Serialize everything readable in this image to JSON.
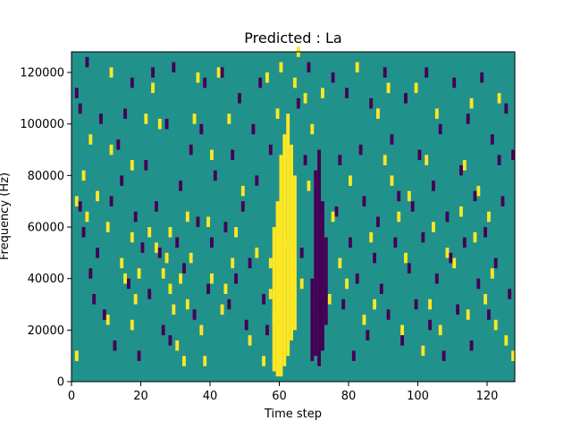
{
  "chart_data": {
    "type": "heatmap",
    "title": "Predicted : La",
    "xlabel": "Time step",
    "ylabel": "Frequency (Hz)",
    "xlim": [
      0,
      128
    ],
    "ylim": [
      0,
      128000
    ],
    "x_ticks": [
      0,
      20,
      40,
      60,
      80,
      100,
      120
    ],
    "y_ticks": [
      0,
      20000,
      40000,
      60000,
      80000,
      100000,
      120000
    ],
    "x_tick_labels": [
      "0",
      "20",
      "40",
      "60",
      "80",
      "100",
      "120"
    ],
    "y_tick_labels": [
      "0",
      "20000",
      "40000",
      "60000",
      "80000",
      "100000",
      "120000"
    ],
    "grid": false,
    "colormap": "viridis",
    "colors": {
      "background": "#21918c",
      "high": "#fde725",
      "low": "#440154"
    },
    "row_height_hz": 4000,
    "cell_width_steps": 1,
    "high_columns": [
      {
        "t": 58,
        "from": 4000,
        "to": 60000
      },
      {
        "t": 59,
        "from": 2000,
        "to": 70000
      },
      {
        "t": 60,
        "from": 2000,
        "to": 88000
      },
      {
        "t": 61,
        "from": 6000,
        "to": 96000
      },
      {
        "t": 62,
        "from": 10000,
        "to": 104000
      },
      {
        "t": 63,
        "from": 16000,
        "to": 92000
      },
      {
        "t": 64,
        "from": 20000,
        "to": 80000
      }
    ],
    "low_columns": [
      {
        "t": 69,
        "from": 8000,
        "to": 40000
      },
      {
        "t": 70,
        "from": 10000,
        "to": 82000
      },
      {
        "t": 71,
        "from": 6000,
        "to": 90000
      },
      {
        "t": 72,
        "from": 12000,
        "to": 70000
      },
      {
        "t": 73,
        "from": 22000,
        "to": 56000
      }
    ],
    "high_cells": [
      [
        1,
        8000
      ],
      [
        1,
        68000
      ],
      [
        3,
        78000
      ],
      [
        4,
        62000
      ],
      [
        5,
        92000
      ],
      [
        7,
        70000
      ],
      [
        10,
        22000
      ],
      [
        10,
        58000
      ],
      [
        11,
        88000
      ],
      [
        11,
        118000
      ],
      [
        14,
        44000
      ],
      [
        15,
        38000
      ],
      [
        17,
        20000
      ],
      [
        17,
        54000
      ],
      [
        17,
        82000
      ],
      [
        18,
        30000
      ],
      [
        19,
        40000
      ],
      [
        21,
        100000
      ],
      [
        22,
        56000
      ],
      [
        23,
        112000
      ],
      [
        24,
        50000
      ],
      [
        25,
        98000
      ],
      [
        26,
        40000
      ],
      [
        27,
        46000
      ],
      [
        28,
        34000
      ],
      [
        28,
        56000
      ],
      [
        29,
        26000
      ],
      [
        30,
        12000
      ],
      [
        31,
        38000
      ],
      [
        32,
        6000
      ],
      [
        33,
        28000
      ],
      [
        33,
        62000
      ],
      [
        34,
        46000
      ],
      [
        35,
        100000
      ],
      [
        36,
        116000
      ],
      [
        37,
        18000
      ],
      [
        38,
        6000
      ],
      [
        39,
        60000
      ],
      [
        40,
        38000
      ],
      [
        40,
        86000
      ],
      [
        42,
        118000
      ],
      [
        43,
        26000
      ],
      [
        44,
        34000
      ],
      [
        45,
        100000
      ],
      [
        46,
        44000
      ],
      [
        47,
        56000
      ],
      [
        49,
        72000
      ],
      [
        51,
        14000
      ],
      [
        53,
        48000
      ],
      [
        55,
        6000
      ],
      [
        56,
        116000
      ],
      [
        57,
        32000
      ],
      [
        57,
        44000
      ],
      [
        58,
        22000
      ],
      [
        59,
        102000
      ],
      [
        60,
        120000
      ],
      [
        62,
        52000
      ],
      [
        64,
        114000
      ],
      [
        65,
        126000
      ],
      [
        66,
        36000
      ],
      [
        67,
        108000
      ],
      [
        68,
        74000
      ],
      [
        69,
        96000
      ],
      [
        70,
        28000
      ],
      [
        72,
        110000
      ],
      [
        74,
        30000
      ],
      [
        75,
        62000
      ],
      [
        77,
        44000
      ],
      [
        79,
        36000
      ],
      [
        80,
        76000
      ],
      [
        82,
        120000
      ],
      [
        84,
        22000
      ],
      [
        86,
        54000
      ],
      [
        87,
        28000
      ],
      [
        88,
        102000
      ],
      [
        90,
        84000
      ],
      [
        91,
        112000
      ],
      [
        92,
        76000
      ],
      [
        94,
        62000
      ],
      [
        95,
        18000
      ],
      [
        96,
        46000
      ],
      [
        97,
        70000
      ],
      [
        99,
        112000
      ],
      [
        101,
        10000
      ],
      [
        102,
        84000
      ],
      [
        103,
        28000
      ],
      [
        104,
        58000
      ],
      [
        105,
        102000
      ],
      [
        106,
        18000
      ],
      [
        108,
        48000
      ],
      [
        110,
        44000
      ],
      [
        112,
        64000
      ],
      [
        113,
        82000
      ],
      [
        114,
        24000
      ],
      [
        115,
        106000
      ],
      [
        116,
        54000
      ],
      [
        117,
        72000
      ],
      [
        119,
        30000
      ],
      [
        120,
        62000
      ],
      [
        121,
        40000
      ],
      [
        122,
        20000
      ],
      [
        123,
        108000
      ],
      [
        125,
        14000
      ],
      [
        127,
        8000
      ]
    ],
    "low_cells": [
      [
        1,
        110000
      ],
      [
        2,
        66000
      ],
      [
        2,
        104000
      ],
      [
        3,
        56000
      ],
      [
        4,
        122000
      ],
      [
        5,
        40000
      ],
      [
        6,
        30000
      ],
      [
        7,
        48000
      ],
      [
        8,
        100000
      ],
      [
        9,
        24000
      ],
      [
        11,
        68000
      ],
      [
        12,
        12000
      ],
      [
        13,
        90000
      ],
      [
        14,
        76000
      ],
      [
        15,
        102000
      ],
      [
        16,
        36000
      ],
      [
        17,
        114000
      ],
      [
        18,
        62000
      ],
      [
        19,
        8000
      ],
      [
        20,
        50000
      ],
      [
        21,
        82000
      ],
      [
        22,
        32000
      ],
      [
        23,
        118000
      ],
      [
        24,
        66000
      ],
      [
        25,
        48000
      ],
      [
        26,
        18000
      ],
      [
        27,
        98000
      ],
      [
        28,
        14000
      ],
      [
        29,
        120000
      ],
      [
        30,
        52000
      ],
      [
        31,
        74000
      ],
      [
        32,
        42000
      ],
      [
        34,
        88000
      ],
      [
        35,
        24000
      ],
      [
        36,
        60000
      ],
      [
        37,
        96000
      ],
      [
        38,
        114000
      ],
      [
        39,
        34000
      ],
      [
        40,
        52000
      ],
      [
        41,
        78000
      ],
      [
        43,
        118000
      ],
      [
        44,
        58000
      ],
      [
        45,
        28000
      ],
      [
        46,
        86000
      ],
      [
        47,
        38000
      ],
      [
        48,
        108000
      ],
      [
        49,
        66000
      ],
      [
        50,
        20000
      ],
      [
        51,
        44000
      ],
      [
        52,
        96000
      ],
      [
        53,
        76000
      ],
      [
        54,
        114000
      ],
      [
        55,
        30000
      ],
      [
        56,
        18000
      ],
      [
        57,
        88000
      ],
      [
        65,
        106000
      ],
      [
        66,
        48000
      ],
      [
        67,
        84000
      ],
      [
        68,
        120000
      ],
      [
        75,
        116000
      ],
      [
        76,
        64000
      ],
      [
        77,
        84000
      ],
      [
        78,
        28000
      ],
      [
        79,
        110000
      ],
      [
        80,
        52000
      ],
      [
        81,
        8000
      ],
      [
        82,
        38000
      ],
      [
        83,
        88000
      ],
      [
        84,
        68000
      ],
      [
        85,
        16000
      ],
      [
        86,
        106000
      ],
      [
        87,
        46000
      ],
      [
        88,
        60000
      ],
      [
        89,
        34000
      ],
      [
        90,
        118000
      ],
      [
        91,
        24000
      ],
      [
        92,
        92000
      ],
      [
        93,
        52000
      ],
      [
        94,
        70000
      ],
      [
        95,
        14000
      ],
      [
        96,
        108000
      ],
      [
        97,
        42000
      ],
      [
        98,
        66000
      ],
      [
        99,
        28000
      ],
      [
        100,
        86000
      ],
      [
        101,
        54000
      ],
      [
        102,
        118000
      ],
      [
        103,
        20000
      ],
      [
        104,
        74000
      ],
      [
        105,
        38000
      ],
      [
        106,
        96000
      ],
      [
        107,
        8000
      ],
      [
        108,
        62000
      ],
      [
        109,
        46000
      ],
      [
        110,
        114000
      ],
      [
        111,
        26000
      ],
      [
        112,
        80000
      ],
      [
        113,
        52000
      ],
      [
        114,
        100000
      ],
      [
        115,
        12000
      ],
      [
        116,
        70000
      ],
      [
        117,
        36000
      ],
      [
        118,
        116000
      ],
      [
        119,
        56000
      ],
      [
        120,
        24000
      ],
      [
        121,
        92000
      ],
      [
        122,
        44000
      ],
      [
        123,
        84000
      ],
      [
        124,
        68000
      ],
      [
        125,
        104000
      ],
      [
        126,
        32000
      ],
      [
        127,
        86000
      ]
    ]
  }
}
